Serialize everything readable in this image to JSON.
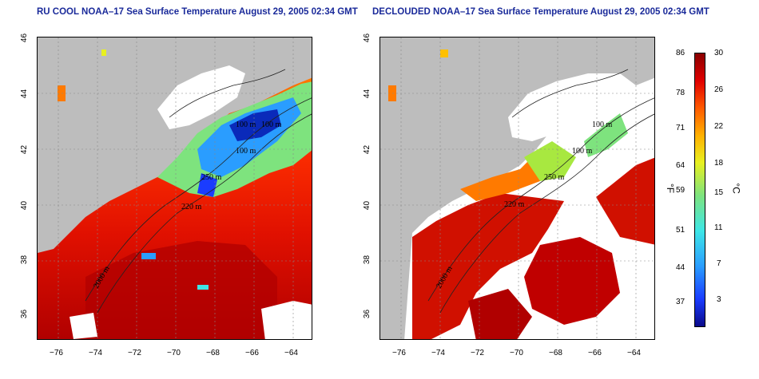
{
  "left_panel": {
    "title": "RU COOL NOAA–17 Sea Surface Temperature August 29, 2005 02:34 GMT",
    "contour_labels": [
      "100 m",
      "100 m",
      "100 m",
      "250 m",
      "220 m",
      "2000 m"
    ]
  },
  "right_panel": {
    "title": "DECLOUDED NOAA–17 Sea Surface Temperature August 29, 2005 02:34 GMT",
    "contour_labels": [
      "100 m",
      "100 m",
      "250 m",
      "220 m",
      "2000 m"
    ]
  },
  "axes": {
    "x_ticks": [
      "−76",
      "−74",
      "−72",
      "−70",
      "−68",
      "−66",
      "−64"
    ],
    "y_ticks": [
      "46",
      "44",
      "42",
      "40",
      "38",
      "36"
    ]
  },
  "colorbar": {
    "fahrenheit_unit": "°F",
    "celsius_unit": "°C",
    "fahrenheit_ticks": [
      "86",
      "78",
      "71",
      "64",
      "59",
      "51",
      "44",
      "37"
    ],
    "celsius_ticks": [
      "30",
      "26",
      "22",
      "18",
      "15",
      "11",
      "7",
      "3"
    ]
  },
  "colors": {
    "land": "#bdbdbd",
    "cloud": "#ffffff",
    "warm": "#e01000",
    "hot": "#b00000",
    "cool": "#2a7dff",
    "cold": "#0a0a9a",
    "mild": "#7ee37e",
    "title": "#1a2a9a"
  }
}
